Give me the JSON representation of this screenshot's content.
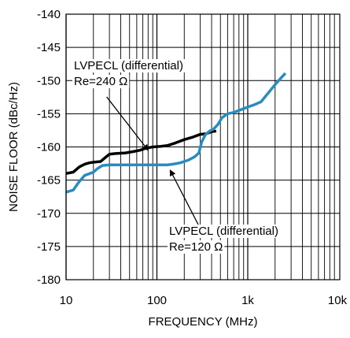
{
  "chart_data": {
    "type": "line",
    "title": "",
    "xlabel": "FREQUENCY (MHz)",
    "ylabel": "NOISE FLOOR (dBc/Hz)",
    "xscale": "log",
    "xlim": [
      10,
      3000
    ],
    "ylim": [
      -180,
      -140
    ],
    "grid": true,
    "x_ticks": [
      {
        "value": 10,
        "label": "10"
      },
      {
        "value": 100,
        "label": "100"
      },
      {
        "value": 1000,
        "label": "1k"
      },
      {
        "value": 10000,
        "label": "10k"
      }
    ],
    "y_ticks": [
      {
        "value": -140,
        "label": "-140"
      },
      {
        "value": -145,
        "label": "-145"
      },
      {
        "value": -150,
        "label": "-150"
      },
      {
        "value": -155,
        "label": "-155"
      },
      {
        "value": -160,
        "label": "-160"
      },
      {
        "value": -165,
        "label": "-165"
      },
      {
        "value": -170,
        "label": "-170"
      },
      {
        "value": -175,
        "label": "-175"
      },
      {
        "value": -180,
        "label": "-180"
      }
    ],
    "series": [
      {
        "color": "#000000",
        "annotation": [
          "LVPECL (differential)",
          "Re=240 Ω"
        ],
        "points": [
          [
            10,
            -164.0
          ],
          [
            12,
            -163.8
          ],
          [
            14,
            -163.0
          ],
          [
            16,
            -162.6
          ],
          [
            18,
            -162.4
          ],
          [
            20,
            -162.3
          ],
          [
            24,
            -162.2
          ],
          [
            27,
            -161.6
          ],
          [
            30,
            -161.1
          ],
          [
            35,
            -161.0
          ],
          [
            45,
            -160.9
          ],
          [
            55,
            -160.7
          ],
          [
            65,
            -160.5
          ],
          [
            75,
            -160.2
          ],
          [
            90,
            -160.0
          ],
          [
            110,
            -159.9
          ],
          [
            130,
            -159.8
          ],
          [
            160,
            -159.4
          ],
          [
            200,
            -158.9
          ],
          [
            250,
            -158.5
          ],
          [
            300,
            -158.1
          ],
          [
            350,
            -158.0
          ],
          [
            400,
            -157.7
          ],
          [
            450,
            -157.6
          ]
        ]
      },
      {
        "color": "#2a8bc0",
        "annotation": [
          "LVPECL (differential)",
          "Re=120 Ω"
        ],
        "points": [
          [
            10,
            -166.8
          ],
          [
            12,
            -166.5
          ],
          [
            14,
            -165.2
          ],
          [
            16,
            -164.3
          ],
          [
            20,
            -163.8
          ],
          [
            22,
            -163.3
          ],
          [
            25,
            -162.8
          ],
          [
            30,
            -162.7
          ],
          [
            40,
            -162.7
          ],
          [
            60,
            -162.7
          ],
          [
            80,
            -162.7
          ],
          [
            100,
            -162.7
          ],
          [
            130,
            -162.7
          ],
          [
            150,
            -162.6
          ],
          [
            180,
            -162.4
          ],
          [
            220,
            -162.0
          ],
          [
            260,
            -161.5
          ],
          [
            290,
            -160.9
          ],
          [
            310,
            -159.3
          ],
          [
            340,
            -158.2
          ],
          [
            380,
            -157.6
          ],
          [
            420,
            -157.3
          ],
          [
            470,
            -156.6
          ],
          [
            520,
            -155.6
          ],
          [
            600,
            -155.0
          ],
          [
            700,
            -154.8
          ],
          [
            800,
            -154.5
          ],
          [
            1000,
            -154.0
          ],
          [
            1200,
            -153.6
          ],
          [
            1400,
            -153.2
          ],
          [
            1700,
            -151.8
          ],
          [
            2000,
            -150.6
          ],
          [
            2400,
            -149.4
          ],
          [
            2600,
            -148.9
          ]
        ]
      }
    ]
  }
}
